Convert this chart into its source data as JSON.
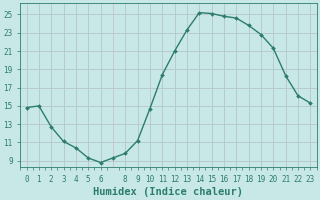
{
  "x": [
    0,
    1,
    2,
    3,
    4,
    5,
    6,
    7,
    8,
    9,
    10,
    11,
    12,
    13,
    14,
    15,
    16,
    17,
    18,
    19,
    20,
    21,
    22,
    23
  ],
  "y": [
    14.8,
    15.0,
    12.7,
    11.1,
    10.4,
    9.3,
    8.8,
    9.3,
    9.8,
    11.2,
    14.7,
    18.4,
    21.0,
    23.3,
    25.2,
    25.1,
    24.8,
    24.6,
    23.8,
    22.8,
    21.3,
    18.3,
    16.1,
    15.3
  ],
  "line_color": "#2d7d6b",
  "marker": "D",
  "marker_size": 2.0,
  "bg_color": "#c8e8e8",
  "grid_color_major": "#b8d4d4",
  "grid_color_minor": "#d4e8e8",
  "tick_color": "#2d7d6b",
  "xlabel": "Humidex (Indice chaleur)",
  "xlabel_fontsize": 7.5,
  "xlim": [
    -0.5,
    23.5
  ],
  "ylim": [
    8.3,
    26.2
  ],
  "xticks": [
    0,
    1,
    2,
    3,
    4,
    5,
    6,
    8,
    9,
    10,
    11,
    12,
    13,
    14,
    15,
    16,
    17,
    18,
    19,
    20,
    21,
    22,
    23
  ],
  "yticks": [
    9,
    11,
    13,
    15,
    17,
    19,
    21,
    23,
    25
  ],
  "tick_fontsize": 5.5,
  "linewidth": 1.0
}
